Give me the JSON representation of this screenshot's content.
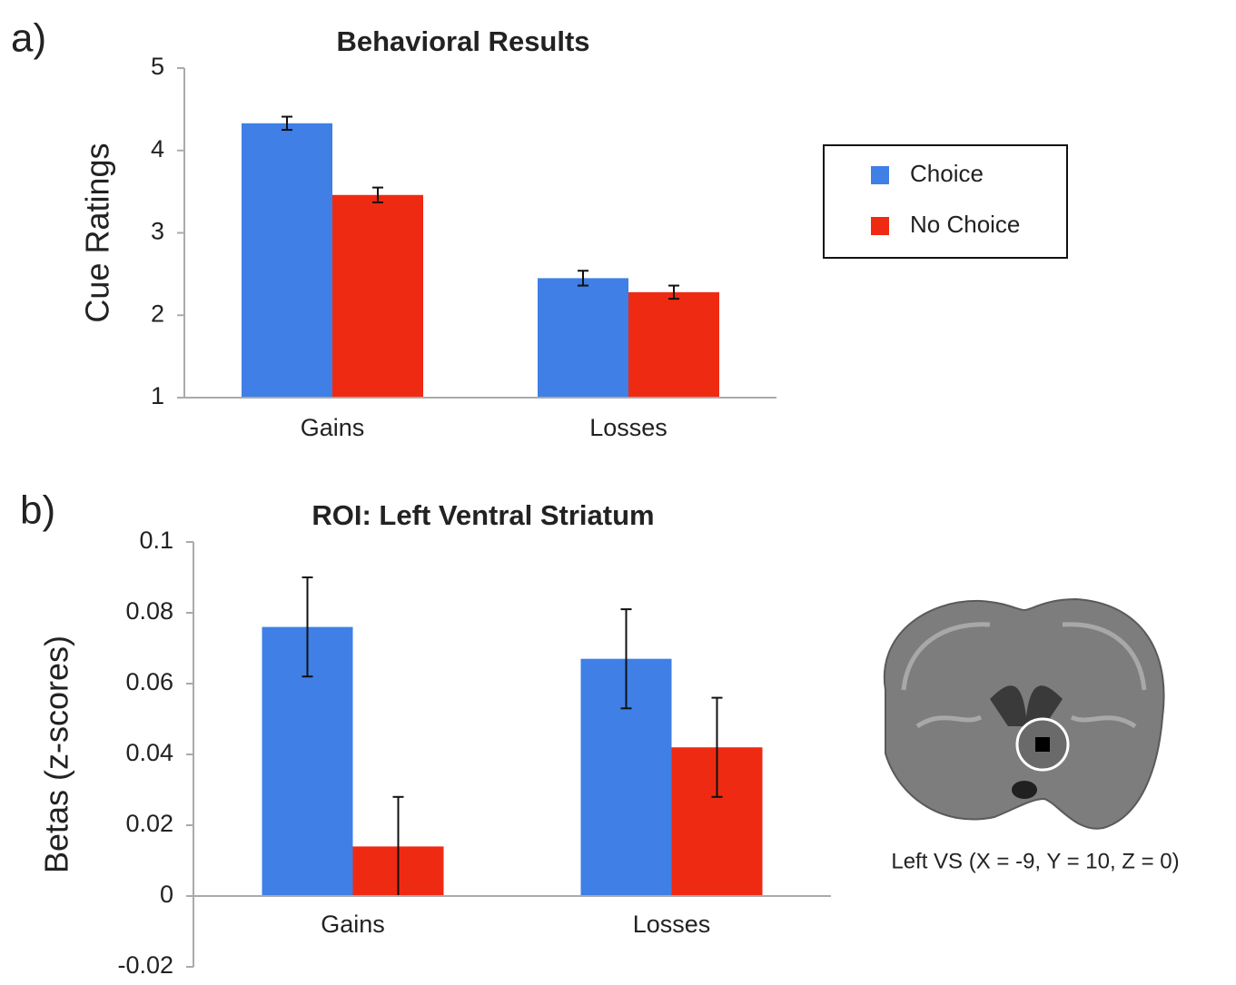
{
  "chart_data": [
    {
      "type": "bar",
      "panel_label": "a)",
      "title": "Behavioral Results",
      "y_label": "Cue Ratings",
      "categories": [
        "Gains",
        "Losses"
      ],
      "series": [
        {
          "name": "Choice",
          "color": "#3f7fe6",
          "values": [
            4.33,
            2.45
          ],
          "errors": [
            0.08,
            0.09
          ]
        },
        {
          "name": "No Choice",
          "color": "#ef2a12",
          "values": [
            3.46,
            2.28
          ],
          "errors": [
            0.09,
            0.08
          ]
        }
      ],
      "ylim": [
        1,
        5
      ],
      "yticks": [
        1,
        2,
        3,
        4,
        5
      ],
      "grid": false,
      "legend": "right"
    },
    {
      "type": "bar",
      "panel_label": "b)",
      "title": "ROI: Left Ventral Striatum",
      "y_label": "Betas (z-scores)",
      "categories": [
        "Gains",
        "Losses"
      ],
      "series": [
        {
          "name": "Choice",
          "color": "#3f7fe6",
          "values": [
            0.076,
            0.067
          ],
          "errors": [
            0.014,
            0.014
          ]
        },
        {
          "name": "No Choice",
          "color": "#ef2a12",
          "values": [
            0.014,
            0.042
          ],
          "errors": [
            0.014,
            0.014
          ]
        }
      ],
      "ylim": [
        -0.02,
        0.1
      ],
      "yticks": [
        -0.02,
        0,
        0.02,
        0.04,
        0.06,
        0.08,
        0.1
      ],
      "grid": false,
      "image_caption": "Left VS (X = -9, Y = 10, Z = 0)"
    }
  ]
}
